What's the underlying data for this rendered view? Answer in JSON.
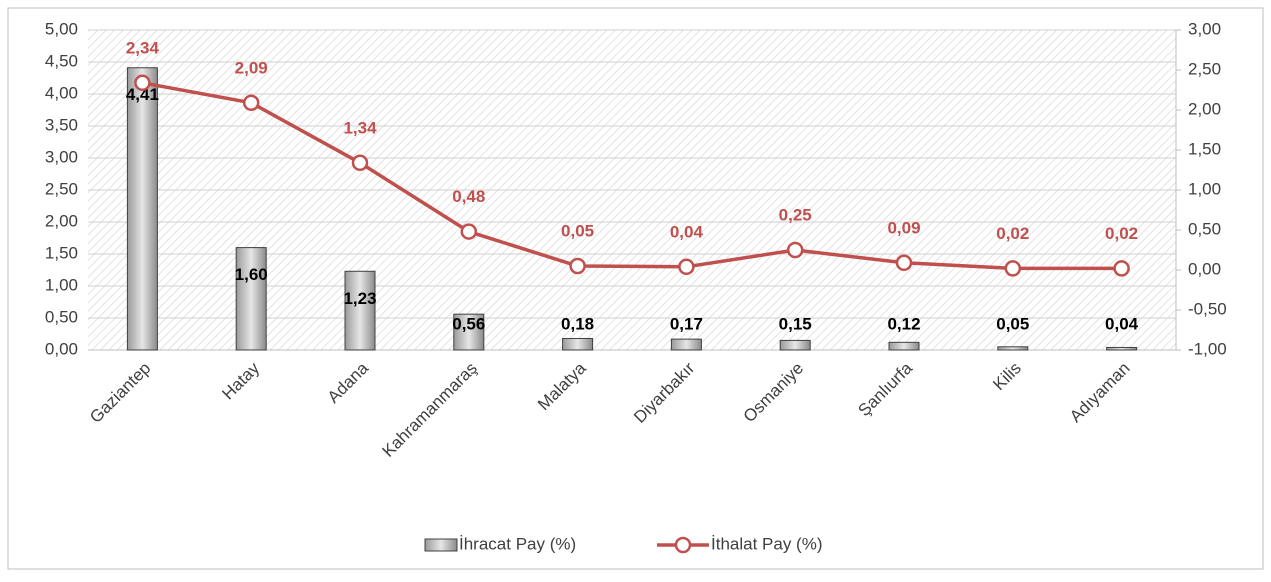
{
  "chart_data": {
    "type": "bar-line",
    "categories": [
      "Gaziantep",
      "Hatay",
      "Adana",
      "Kahramanmaraş",
      "Malatya",
      "Diyarbakır",
      "Osmaniye",
      "Şanlıurfa",
      "Kilis",
      "Adıyaman"
    ],
    "series": [
      {
        "name": "İhracat Pay (%)",
        "type": "bar",
        "color": "#808080",
        "axis": "y",
        "values": [
          4.41,
          1.6,
          1.23,
          0.56,
          0.18,
          0.17,
          0.15,
          0.12,
          0.05,
          0.04
        ],
        "value_labels": [
          "4,41",
          "1,60",
          "1,23",
          "0,56",
          "0,18",
          "0,17",
          "0,15",
          "0,12",
          "0,05",
          "0,04"
        ]
      },
      {
        "name": "İthalat Pay (%)",
        "type": "line",
        "color": "#c0504d",
        "axis": "y2",
        "values": [
          2.34,
          2.09,
          1.34,
          0.48,
          0.05,
          0.04,
          0.25,
          0.09,
          0.02,
          0.02
        ],
        "value_labels": [
          "2,34",
          "2,09",
          "1,34",
          "0,48",
          "0,05",
          "0,04",
          "0,25",
          "0,09",
          "0,02",
          "0,02"
        ]
      }
    ],
    "ylim": [
      0,
      5
    ],
    "yticks": [
      {
        "value": 0,
        "label": "0,00"
      },
      {
        "value": 0.5,
        "label": "0,50"
      },
      {
        "value": 1,
        "label": "1,00"
      },
      {
        "value": 1.5,
        "label": "1,50"
      },
      {
        "value": 2,
        "label": "2,00"
      },
      {
        "value": 2.5,
        "label": "2,50"
      },
      {
        "value": 3,
        "label": "3,00"
      },
      {
        "value": 3.5,
        "label": "3,50"
      },
      {
        "value": 4,
        "label": "4,00"
      },
      {
        "value": 4.5,
        "label": "4,50"
      },
      {
        "value": 5,
        "label": "5,00"
      }
    ],
    "y2lim": [
      -1,
      3
    ],
    "y2ticks": [
      {
        "value": -1,
        "label": "-1,00"
      },
      {
        "value": -0.5,
        "label": "-0,50"
      },
      {
        "value": 0,
        "label": "0,00"
      },
      {
        "value": 0.5,
        "label": "0,50"
      },
      {
        "value": 1,
        "label": "1,00"
      },
      {
        "value": 1.5,
        "label": "1,50"
      },
      {
        "value": 2,
        "label": "2,00"
      },
      {
        "value": 2.5,
        "label": "2,50"
      },
      {
        "value": 3,
        "label": "3,00"
      }
    ],
    "grid": true,
    "legend": "bottom"
  }
}
